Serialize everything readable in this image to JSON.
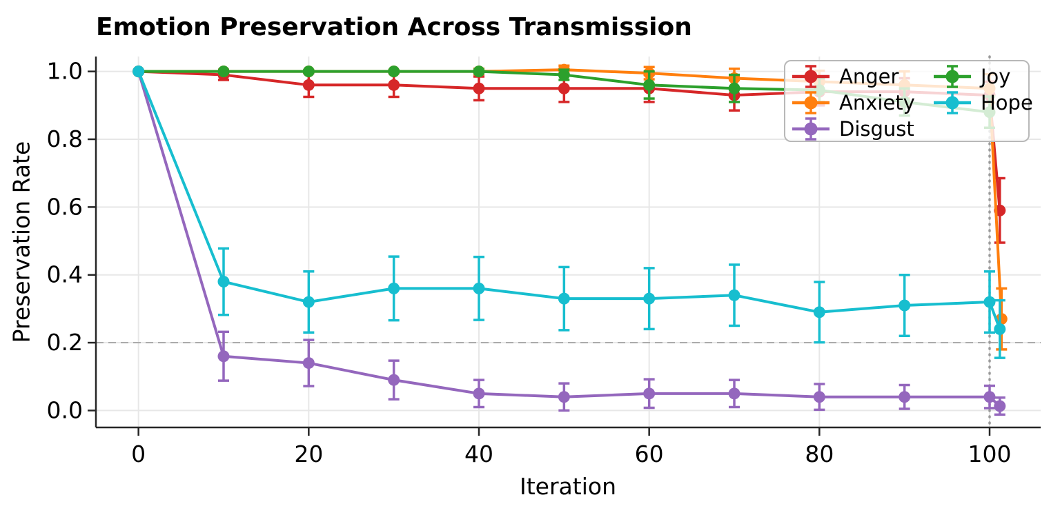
{
  "chart_data": {
    "type": "line",
    "title": "Emotion Preservation Across Transmission",
    "xlabel": "Iteration",
    "ylabel": "Preservation Rate",
    "xlim": [
      -5,
      106
    ],
    "ylim": [
      -0.05,
      1.044
    ],
    "x_ticks": [
      0,
      20,
      40,
      60,
      80,
      100
    ],
    "x_tick_labels": [
      "0",
      "20",
      "40",
      "60",
      "80",
      "100"
    ],
    "y_ticks": [
      0.0,
      0.2,
      0.4,
      0.6,
      0.8,
      1.0
    ],
    "y_tick_labels": [
      "0.0",
      "0.2",
      "0.4",
      "0.6",
      "0.8",
      "1.0"
    ],
    "grid": true,
    "grid_color": "#e7e7e7",
    "legend": {
      "position": "top-right",
      "columns": 2,
      "order_column_major": [
        "Anger",
        "Anxiety",
        "Disgust",
        "Joy",
        "Hope"
      ]
    },
    "reference_lines": [
      {
        "axis": "y",
        "value": 0.2,
        "style": "dashed",
        "color": "#ababab"
      },
      {
        "axis": "x",
        "value": 100,
        "style": "dotted",
        "color": "#9a9a9a"
      }
    ],
    "series": [
      {
        "name": "Anger",
        "color": "#d62728",
        "x": [
          0,
          10,
          20,
          30,
          40,
          50,
          60,
          70,
          80,
          90,
          100,
          101.2
        ],
        "y": [
          1.0,
          0.99,
          0.96,
          0.96,
          0.95,
          0.95,
          0.95,
          0.93,
          0.94,
          0.94,
          0.93,
          0.59
        ],
        "yerr": [
          0,
          0.015,
          0.035,
          0.035,
          0.035,
          0.04,
          0.04,
          0.045,
          0.04,
          0.04,
          0.04,
          0.095
        ]
      },
      {
        "name": "Anxiety",
        "color": "#ff7f0e",
        "x": [
          0,
          10,
          20,
          30,
          40,
          50,
          60,
          70,
          80,
          90,
          100,
          101.4
        ],
        "y": [
          1.0,
          1.0,
          1.0,
          1.0,
          1.0,
          1.005,
          0.995,
          0.98,
          0.97,
          0.96,
          0.95,
          0.27
        ],
        "yerr": [
          0,
          0.004,
          0.004,
          0.004,
          0.008,
          0.012,
          0.018,
          0.028,
          0.032,
          0.04,
          0.042,
          0.09
        ]
      },
      {
        "name": "Disgust",
        "color": "#9467bd",
        "x": [
          0,
          10,
          20,
          30,
          40,
          50,
          60,
          70,
          80,
          90,
          100,
          101.2
        ],
        "y": [
          1.0,
          0.16,
          0.14,
          0.09,
          0.05,
          0.04,
          0.05,
          0.05,
          0.04,
          0.04,
          0.04,
          0.013
        ],
        "yerr": [
          0,
          0.072,
          0.068,
          0.057,
          0.04,
          0.04,
          0.042,
          0.04,
          0.038,
          0.035,
          0.033,
          0.025
        ]
      },
      {
        "name": "Joy",
        "color": "#2ca02c",
        "x": [
          0,
          10,
          20,
          30,
          40,
          50,
          60,
          70,
          80,
          90,
          100
        ],
        "y": [
          1.0,
          1.0,
          1.0,
          1.0,
          1.0,
          0.99,
          0.96,
          0.95,
          0.945,
          0.91,
          0.88
        ],
        "yerr": [
          0,
          0.003,
          0.003,
          0.003,
          0.005,
          0.015,
          0.04,
          0.04,
          0.035,
          0.04,
          0.046
        ]
      },
      {
        "name": "Hope",
        "color": "#17becf",
        "x": [
          0,
          10,
          20,
          30,
          40,
          50,
          60,
          70,
          80,
          90,
          100,
          101.2
        ],
        "y": [
          1.0,
          0.38,
          0.32,
          0.36,
          0.36,
          0.33,
          0.33,
          0.34,
          0.29,
          0.31,
          0.32,
          0.24
        ],
        "yerr": [
          0,
          0.098,
          0.09,
          0.094,
          0.093,
          0.093,
          0.09,
          0.09,
          0.089,
          0.09,
          0.09,
          0.085
        ]
      }
    ]
  }
}
